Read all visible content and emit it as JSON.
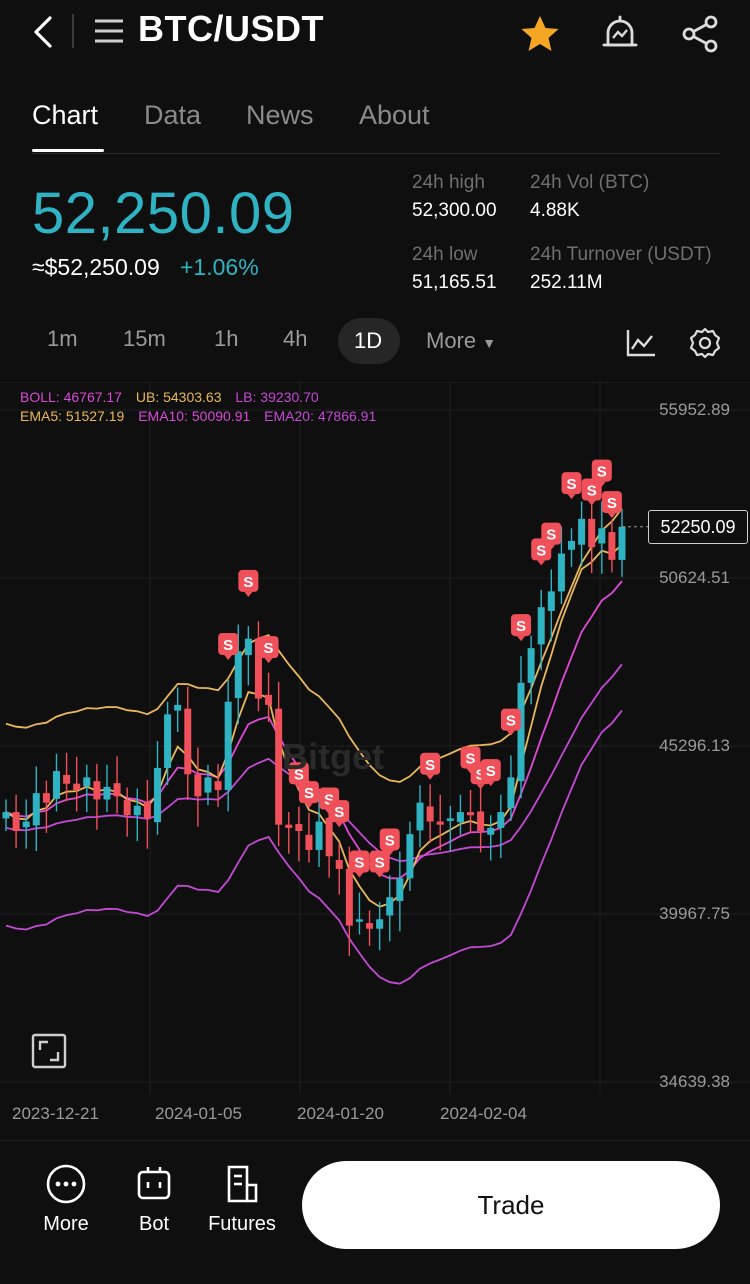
{
  "header": {
    "pair": "BTC/USDT",
    "icons": [
      "back-arrow-icon",
      "menu-icon",
      "star-icon",
      "price-alert-icon",
      "share-icon"
    ]
  },
  "tabs": [
    {
      "label": "Chart",
      "active": true
    },
    {
      "label": "Data",
      "active": false
    },
    {
      "label": "News",
      "active": false
    },
    {
      "label": "About",
      "active": false
    }
  ],
  "ticker": {
    "price": "52,250.09",
    "usd_equiv": "≈$52,250.09",
    "change_pct": "+1.06%",
    "high_label": "24h high",
    "high": "52,300.00",
    "vol_label": "24h Vol (BTC)",
    "vol": "4.88K",
    "low_label": "24h low",
    "low": "51,165.51",
    "turnover_label": "24h Turnover (USDT)",
    "turnover": "252.11M"
  },
  "timeframes": {
    "items": [
      "1m",
      "15m",
      "1h",
      "4h"
    ],
    "selected": "1D",
    "more_label": "More"
  },
  "indicators": {
    "boll": "BOLL: 46767.17",
    "ub": "UB: 54303.63",
    "lb": "LB: 39230.70",
    "ema5": "EMA5: 51527.19",
    "ema10": "EMA10: 50090.91",
    "ema20": "EMA20: 47866.91"
  },
  "chart_data": {
    "type": "candlestick",
    "y_ticks": [
      "55952.89",
      "50624.51",
      "45296.13",
      "39967.75",
      "34639.38"
    ],
    "x_ticks": [
      "2023-12-21",
      "2024-01-05",
      "2024-01-20",
      "2024-02-04"
    ],
    "last_price": "52250.09",
    "sell_marker_label": "S",
    "watermark": "Bitget",
    "colors": {
      "up": "#2fb3c3",
      "down": "#f0505a",
      "boll_mid": "#e8b85a",
      "boll_bands": "#c44ad6",
      "ema": "#e04ad6"
    }
  },
  "bottom_nav": {
    "more": "More",
    "bot": "Bot",
    "futures": "Futures",
    "trade": "Trade"
  }
}
